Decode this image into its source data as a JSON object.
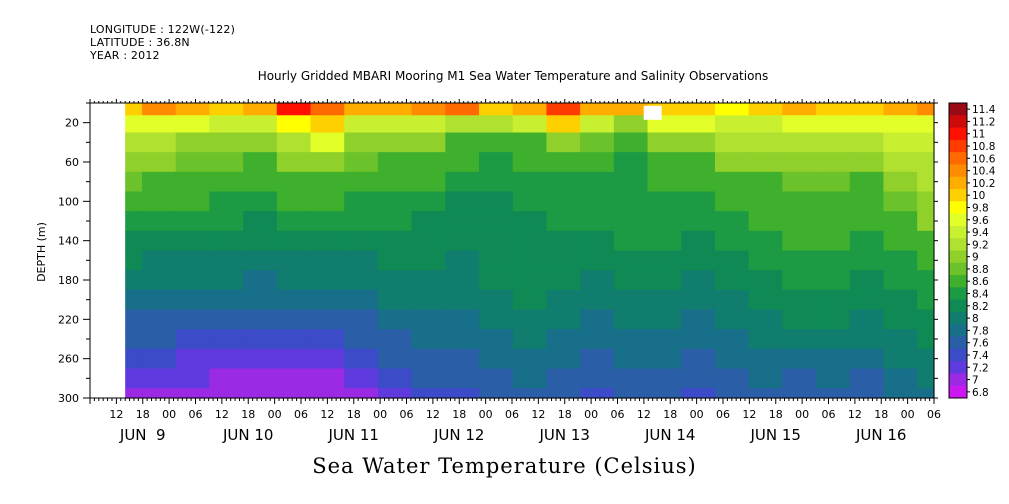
{
  "header": {
    "longitude": "LONGITUDE : 122W(-122)",
    "latitude": "LATITUDE : 36.8N",
    "year": "YEAR : 2012"
  },
  "chart_data": {
    "type": "heatmap",
    "title": "Hourly Gridded MBARI Mooring M1 Sea Water Temperature and Salinity Observations",
    "subtitle": "Sea Water Temperature (Celsius)",
    "ylabel": "DEPTH (m)",
    "xlabel": "",
    "ylim": [
      300,
      0
    ],
    "y_reversed": true,
    "y_ticks": [
      20,
      60,
      100,
      140,
      180,
      220,
      260,
      300
    ],
    "x_range_hours": [
      0,
      192
    ],
    "x_hour_ticks": [
      "12",
      "18",
      "00",
      "06",
      "12",
      "18",
      "00",
      "06",
      "12",
      "18",
      "00",
      "06",
      "12",
      "18",
      "00",
      "06",
      "12",
      "18",
      "00",
      "06",
      "12",
      "18",
      "00",
      "06",
      "12",
      "18",
      "00",
      "06",
      "12",
      "18",
      "00",
      "06"
    ],
    "x_date_labels": [
      {
        "label": "JUN  9",
        "hour": 12
      },
      {
        "label": "JUN 10",
        "hour": 36
      },
      {
        "label": "JUN 11",
        "hour": 60
      },
      {
        "label": "JUN 12",
        "hour": 84
      },
      {
        "label": "JUN 13",
        "hour": 108
      },
      {
        "label": "JUN 14",
        "hour": 132
      },
      {
        "label": "JUN 15",
        "hour": 156
      },
      {
        "label": "JUN 16",
        "hour": 180
      }
    ],
    "data_start_hour": 8,
    "colorbar_labels": [
      "11.4",
      "11.2",
      "11",
      "10.8",
      "10.6",
      "10.4",
      "10.2",
      "10",
      "9.8",
      "9.6",
      "9.4",
      "9.2",
      "9",
      "8.8",
      "8.6",
      "8.4",
      "8.2",
      "8",
      "7.8",
      "7.6",
      "7.4",
      "7.2",
      "7",
      "6.8"
    ],
    "colorbar_colors": [
      "#9a0a14",
      "#cf0a0a",
      "#ff0f00",
      "#ff3c00",
      "#ff6a00",
      "#ff8c00",
      "#ffae00",
      "#ffd000",
      "#ffff00",
      "#e2ff2a",
      "#c8f030",
      "#b0e030",
      "#8fd02a",
      "#6bc22a",
      "#3fb02e",
      "#1c9a44",
      "#0f8a55",
      "#107d6e",
      "#186f8a",
      "#2a5ea6",
      "#3c4bc8",
      "#5f3ade",
      "#9a2ae4",
      "#cc18f0"
    ],
    "series": [
      {
        "depth": 5,
        "values": [
          10.0,
          10.4,
          10.2,
          10.0,
          10.1,
          10.9,
          10.6,
          10.1,
          10.2,
          10.3,
          10.5,
          10.0,
          10.2,
          10.8,
          10.2,
          10.1,
          10.0,
          9.9,
          9.8,
          10.0,
          10.1,
          10.0,
          9.9,
          10.2,
          10.4
        ]
      },
      {
        "depth": 20,
        "values": [
          9.6,
          9.7,
          9.5,
          9.4,
          9.4,
          9.8,
          9.9,
          9.3,
          9.4,
          9.4,
          9.2,
          9.1,
          9.4,
          9.9,
          9.3,
          9.0,
          9.5,
          9.6,
          9.4,
          9.4,
          9.6,
          9.5,
          9.5,
          9.6,
          9.7
        ]
      },
      {
        "depth": 40,
        "values": [
          9.2,
          9.1,
          9.0,
          8.9,
          9.0,
          9.2,
          9.5,
          9.0,
          8.9,
          8.9,
          8.7,
          8.6,
          8.7,
          9.0,
          8.8,
          8.6,
          8.9,
          9.0,
          9.1,
          9.1,
          9.2,
          9.2,
          9.2,
          9.3,
          9.4
        ]
      },
      {
        "depth": 60,
        "values": [
          8.9,
          8.9,
          8.8,
          8.8,
          8.7,
          8.9,
          9.0,
          8.8,
          8.7,
          8.7,
          8.5,
          8.4,
          8.5,
          8.6,
          8.5,
          8.4,
          8.6,
          8.7,
          8.9,
          8.9,
          9.0,
          9.0,
          8.9,
          9.1,
          9.2
        ]
      },
      {
        "depth": 80,
        "values": [
          8.8,
          8.7,
          8.6,
          8.6,
          8.5,
          8.7,
          8.7,
          8.6,
          8.5,
          8.5,
          8.3,
          8.3,
          8.4,
          8.4,
          8.4,
          8.3,
          8.5,
          8.5,
          8.7,
          8.7,
          8.8,
          8.8,
          8.7,
          8.9,
          9.1
        ]
      },
      {
        "depth": 100,
        "values": [
          8.6,
          8.5,
          8.5,
          8.4,
          8.3,
          8.5,
          8.5,
          8.4,
          8.4,
          8.3,
          8.2,
          8.2,
          8.3,
          8.3,
          8.3,
          8.3,
          8.4,
          8.4,
          8.5,
          8.6,
          8.7,
          8.7,
          8.6,
          8.8,
          9.0
        ]
      },
      {
        "depth": 120,
        "values": [
          8.4,
          8.3,
          8.3,
          8.3,
          8.2,
          8.3,
          8.3,
          8.3,
          8.3,
          8.2,
          8.2,
          8.2,
          8.2,
          8.3,
          8.3,
          8.3,
          8.3,
          8.3,
          8.4,
          8.5,
          8.6,
          8.6,
          8.5,
          8.6,
          8.9
        ]
      },
      {
        "depth": 140,
        "values": [
          8.2,
          8.2,
          8.2,
          8.2,
          8.1,
          8.2,
          8.2,
          8.2,
          8.2,
          8.2,
          8.1,
          8.2,
          8.2,
          8.2,
          8.2,
          8.3,
          8.3,
          8.2,
          8.3,
          8.4,
          8.5,
          8.5,
          8.4,
          8.5,
          8.7
        ]
      },
      {
        "depth": 160,
        "values": [
          8.1,
          8.0,
          8.0,
          8.0,
          8.0,
          8.0,
          8.0,
          8.0,
          8.1,
          8.1,
          8.0,
          8.1,
          8.2,
          8.1,
          8.1,
          8.2,
          8.2,
          8.1,
          8.2,
          8.3,
          8.4,
          8.4,
          8.3,
          8.4,
          8.5
        ]
      },
      {
        "depth": 180,
        "values": [
          7.9,
          7.9,
          7.9,
          7.9,
          7.8,
          7.9,
          7.9,
          7.9,
          8.0,
          8.0,
          8.0,
          8.1,
          8.1,
          8.1,
          8.0,
          8.1,
          8.1,
          8.0,
          8.1,
          8.2,
          8.3,
          8.3,
          8.2,
          8.3,
          8.4
        ]
      },
      {
        "depth": 200,
        "values": [
          7.8,
          7.7,
          7.7,
          7.7,
          7.7,
          7.7,
          7.7,
          7.8,
          7.9,
          7.9,
          7.9,
          8.0,
          8.1,
          8.0,
          7.9,
          8.0,
          8.0,
          7.9,
          8.0,
          8.1,
          8.2,
          8.2,
          8.1,
          8.2,
          8.3
        ]
      },
      {
        "depth": 220,
        "values": [
          7.6,
          7.6,
          7.6,
          7.6,
          7.5,
          7.6,
          7.6,
          7.6,
          7.7,
          7.8,
          7.8,
          7.9,
          8.0,
          7.9,
          7.8,
          7.9,
          7.9,
          7.8,
          7.9,
          8.0,
          8.1,
          8.1,
          8.0,
          8.1,
          8.2
        ]
      },
      {
        "depth": 240,
        "values": [
          7.5,
          7.5,
          7.4,
          7.4,
          7.4,
          7.4,
          7.4,
          7.5,
          7.6,
          7.7,
          7.7,
          7.8,
          7.9,
          7.8,
          7.7,
          7.8,
          7.8,
          7.7,
          7.8,
          7.9,
          8.0,
          8.0,
          7.9,
          8.0,
          8.1
        ]
      },
      {
        "depth": 260,
        "values": [
          7.4,
          7.4,
          7.3,
          7.2,
          7.2,
          7.2,
          7.3,
          7.4,
          7.5,
          7.6,
          7.6,
          7.7,
          7.8,
          7.7,
          7.6,
          7.7,
          7.7,
          7.6,
          7.7,
          7.8,
          7.8,
          7.8,
          7.7,
          7.9,
          8.0
        ]
      },
      {
        "depth": 280,
        "values": [
          7.3,
          7.2,
          7.2,
          7.1,
          7.0,
          7.0,
          7.1,
          7.2,
          7.4,
          7.5,
          7.5,
          7.6,
          7.7,
          7.6,
          7.5,
          7.6,
          7.6,
          7.5,
          7.6,
          7.7,
          7.6,
          7.7,
          7.6,
          7.8,
          7.9
        ]
      },
      {
        "depth": 300,
        "values": [
          7.1,
          7.1,
          7.0,
          6.9,
          6.9,
          6.9,
          7.0,
          7.1,
          7.3,
          7.4,
          7.4,
          7.5,
          7.6,
          7.5,
          7.4,
          7.5,
          7.5,
          7.4,
          7.5,
          7.6,
          7.5,
          7.6,
          7.5,
          7.7,
          7.8
        ]
      }
    ],
    "missing_cell": {
      "hour": 128,
      "depth": 10
    },
    "grid": false
  }
}
